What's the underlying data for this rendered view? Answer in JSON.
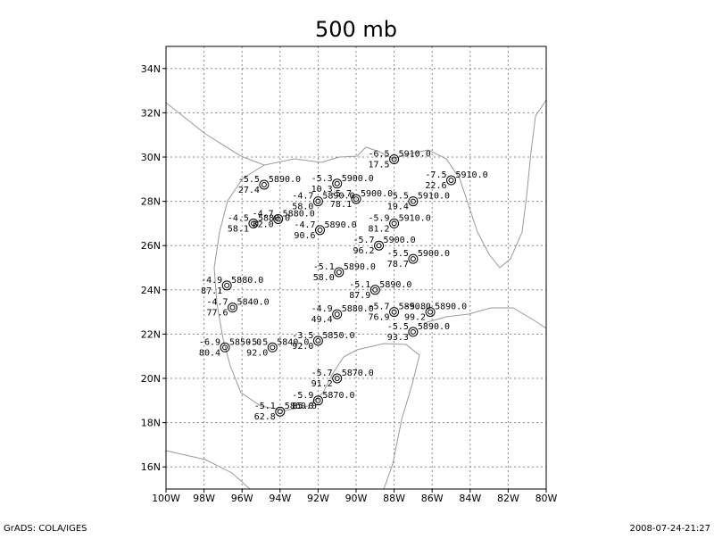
{
  "map": {
    "title": "500 mb",
    "footer_left": "GrADS: COLA/IGES",
    "footer_right": "2008-07-24-21:27",
    "xlim": [
      -100,
      -80
    ],
    "ylim": [
      15,
      35
    ],
    "grid": true,
    "xticks": [
      {
        "value": -100,
        "label": "100W"
      },
      {
        "value": -98,
        "label": "98W"
      },
      {
        "value": -96,
        "label": "96W"
      },
      {
        "value": -94,
        "label": "94W"
      },
      {
        "value": -92,
        "label": "92W"
      },
      {
        "value": -90,
        "label": "90W"
      },
      {
        "value": -88,
        "label": "88W"
      },
      {
        "value": -86,
        "label": "86W"
      },
      {
        "value": -84,
        "label": "84W"
      },
      {
        "value": -82,
        "label": "82W"
      },
      {
        "value": -80,
        "label": "80W"
      }
    ],
    "yticks": [
      {
        "value": 16,
        "label": "16N"
      },
      {
        "value": 18,
        "label": "18N"
      },
      {
        "value": 20,
        "label": "20N"
      },
      {
        "value": 22,
        "label": "22N"
      },
      {
        "value": 24,
        "label": "24N"
      },
      {
        "value": 26,
        "label": "26N"
      },
      {
        "value": 28,
        "label": "28N"
      },
      {
        "value": 30,
        "label": "30N"
      },
      {
        "value": 32,
        "label": "32N"
      },
      {
        "value": 34,
        "label": "34N"
      }
    ],
    "stations": [
      {
        "lon": -94.84,
        "lat": 28.75,
        "temp": "-5.5",
        "dew": "27.4",
        "height": "5890.0"
      },
      {
        "lon": -91.0,
        "lat": 28.8,
        "temp": "-5.3",
        "dew": "10.3",
        "height": "5900.0"
      },
      {
        "lon": -88.0,
        "lat": 29.9,
        "temp": "-6.5",
        "dew": "17.5",
        "height": "5910.0"
      },
      {
        "lon": -85.0,
        "lat": 28.95,
        "temp": "-7.5",
        "dew": "22.6",
        "height": "5910.0"
      },
      {
        "lon": -92.0,
        "lat": 28.0,
        "temp": "-4.7",
        "dew": "58.0",
        "height": "5890.0"
      },
      {
        "lon": -90.0,
        "lat": 28.1,
        "temp": "-5.7",
        "dew": "78.1",
        "height": "5900.0"
      },
      {
        "lon": -87.0,
        "lat": 28.0,
        "temp": "-5.5",
        "dew": "19.4",
        "height": "5910.0"
      },
      {
        "lon": -95.4,
        "lat": 27.0,
        "temp": "-4.5",
        "dew": "58.1",
        "height": "5880.0"
      },
      {
        "lon": -94.1,
        "lat": 27.2,
        "temp": "-4.7",
        "dew": "82.0",
        "height": "5880.0"
      },
      {
        "lon": -91.9,
        "lat": 26.7,
        "temp": "-4.7",
        "dew": "90.6",
        "height": "5890.0"
      },
      {
        "lon": -88.0,
        "lat": 27.0,
        "temp": "-5.9",
        "dew": "81.2",
        "height": "5910.0"
      },
      {
        "lon": -88.8,
        "lat": 26.0,
        "temp": "-5.7",
        "dew": "96.2",
        "height": "5900.0"
      },
      {
        "lon": -87.0,
        "lat": 25.4,
        "temp": "-5.5",
        "dew": "78.7",
        "height": "5900.0"
      },
      {
        "lon": -90.9,
        "lat": 24.8,
        "temp": "-5.1",
        "dew": "58.0",
        "height": "5890.0"
      },
      {
        "lon": -89.0,
        "lat": 24.0,
        "temp": "-5.1",
        "dew": "87.9",
        "height": "5890.0"
      },
      {
        "lon": -96.8,
        "lat": 24.2,
        "temp": "-4.9",
        "dew": "87.1",
        "height": "5880.0"
      },
      {
        "lon": -96.5,
        "lat": 23.2,
        "temp": "-4.7",
        "dew": "77.6",
        "height": "5840.0"
      },
      {
        "lon": -91.0,
        "lat": 22.9,
        "temp": "-4.9",
        "dew": "49.4",
        "height": "5880.0"
      },
      {
        "lon": -88.0,
        "lat": 23.0,
        "temp": "-5.7",
        "dew": "76.9",
        "height": "5890.0"
      },
      {
        "lon": -86.1,
        "lat": 23.0,
        "temp": "-5.8",
        "dew": "99.2",
        "height": "5890.0"
      },
      {
        "lon": -87.0,
        "lat": 22.1,
        "temp": "-5.5",
        "dew": "93.3",
        "height": "5890.0"
      },
      {
        "lon": -96.9,
        "lat": 21.4,
        "temp": "-6.9",
        "dew": "80.4",
        "height": "5850.0"
      },
      {
        "lon": -94.4,
        "lat": 21.4,
        "temp": "-5.5",
        "dew": "92.0",
        "height": "5840.0"
      },
      {
        "lon": -92.0,
        "lat": 21.7,
        "temp": "-3.5",
        "dew": "92.0",
        "height": "5850.0"
      },
      {
        "lon": -91.0,
        "lat": 20.0,
        "temp": "-5.7",
        "dew": "91.2",
        "height": "5870.0"
      },
      {
        "lon": -92.0,
        "lat": 19.0,
        "temp": "-5.9",
        "dew": "85.0",
        "height": "5870.0"
      },
      {
        "lon": -94.0,
        "lat": 18.5,
        "temp": "-5.1",
        "dew": "62.8",
        "height": "5860.0"
      }
    ]
  }
}
